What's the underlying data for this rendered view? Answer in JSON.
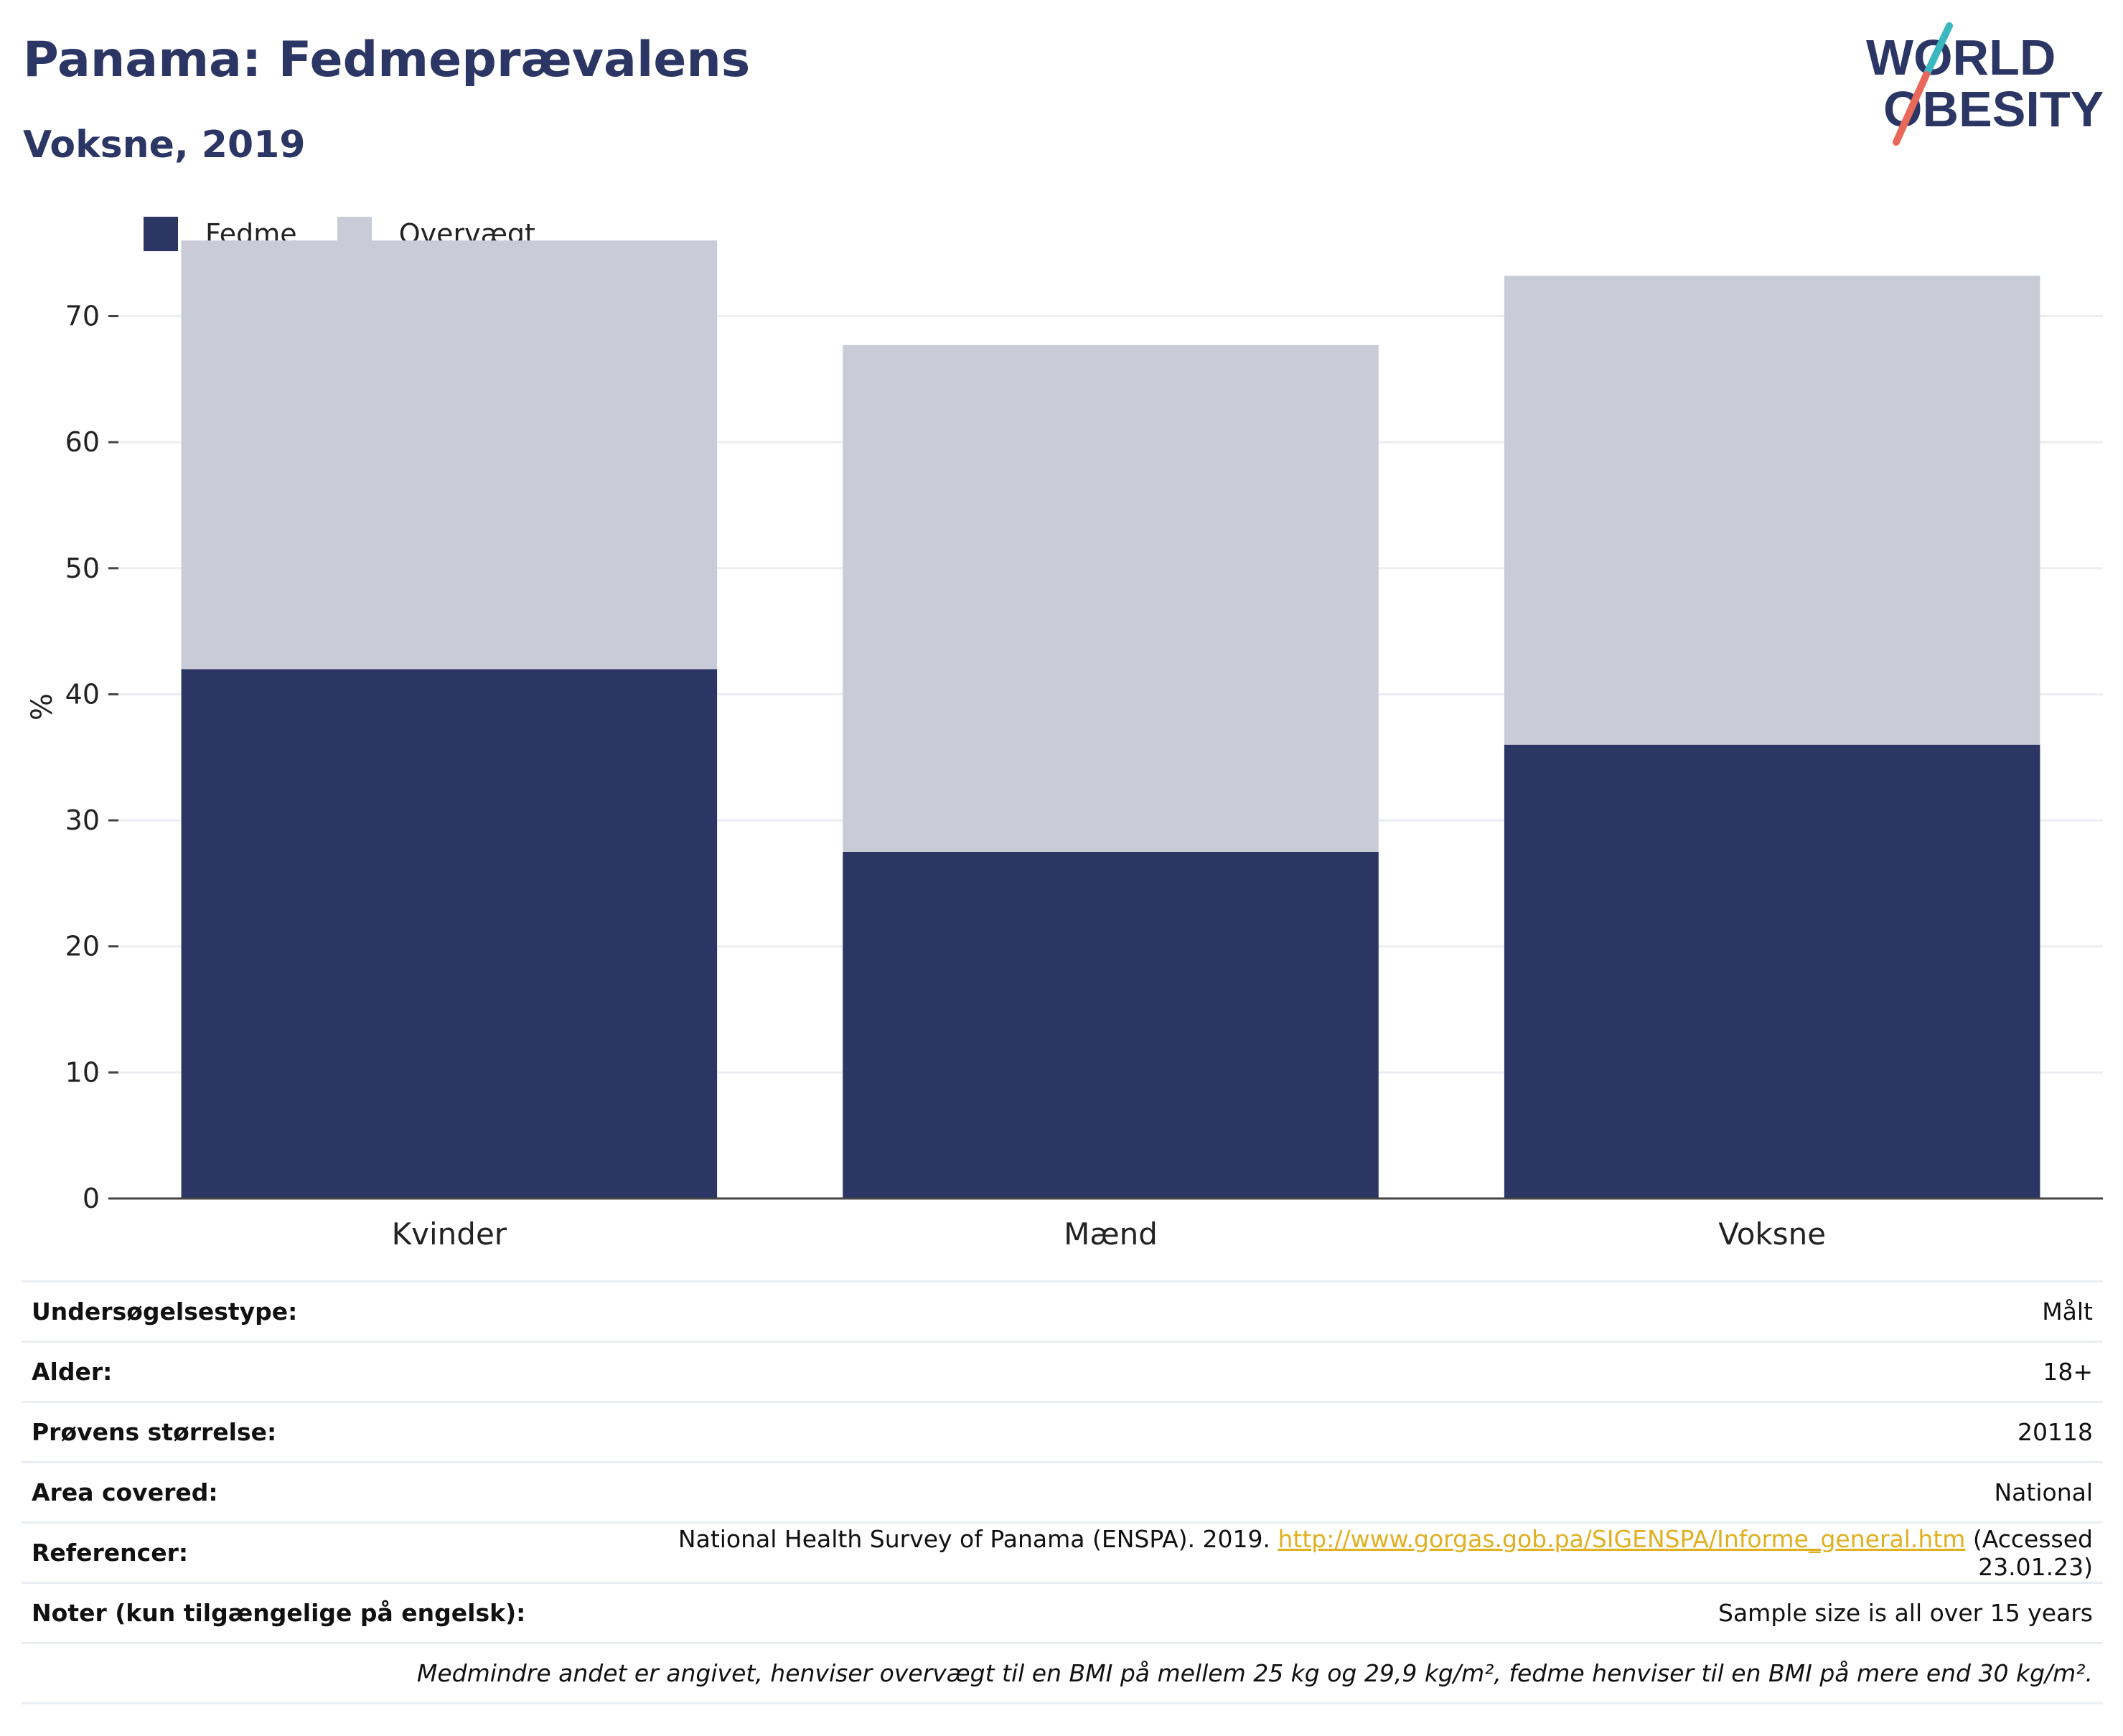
{
  "header": {
    "title": "Panama: Fedmeprævalens",
    "subtitle": "Voksne, 2019"
  },
  "logo": {
    "line1": "WORLD",
    "line2": "OBESITY",
    "colors": {
      "navy": "#2b3664",
      "teal": "#3ab7bf",
      "coral": "#e8685a"
    }
  },
  "chart_data": {
    "type": "bar",
    "stacked": true,
    "categories": [
      "Kvinder",
      "Mænd",
      "Voksne"
    ],
    "series": [
      {
        "name": "Fedme",
        "values": [
          42.0,
          27.5,
          36.0
        ],
        "color": "#2b3664"
      },
      {
        "name": "Overvægt",
        "values": [
          34.0,
          40.2,
          37.2
        ],
        "color": "#c9cbd6"
      }
    ],
    "title": "",
    "xlabel": "",
    "ylabel": "%",
    "ylim": [
      0,
      78
    ],
    "yticks": [
      0,
      10,
      20,
      30,
      40,
      50,
      60,
      70
    ],
    "grid": true,
    "legend_position": "top-left"
  },
  "info": {
    "rows": [
      {
        "label": "Undersøgelsestype:",
        "value": "Målt"
      },
      {
        "label": "Alder:",
        "value": "18+"
      },
      {
        "label": "Prøvens størrelse:",
        "value": "20118"
      },
      {
        "label": "Area covered:",
        "value": "National"
      }
    ],
    "reference": {
      "label": "Referencer:",
      "text_before": "National Health Survey of Panama (ENSPA). 2019. ",
      "link": "http://www.gorgas.gob.pa/SIGENSPA/Informe_general.htm",
      "text_after": " (Accessed 23.01.23)"
    },
    "notes": {
      "label": "Noter (kun tilgængelige på engelsk):",
      "value": "Sample size is all over 15 years"
    },
    "footnote": "Medmindre andet er angivet, henviser overvægt til en BMI på mellem 25 kg og 29,9 kg/m², fedme henviser til en BMI på mere end 30 kg/m²."
  }
}
